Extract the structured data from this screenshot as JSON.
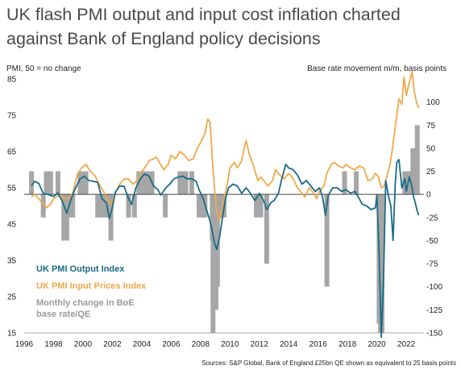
{
  "header": {
    "title_line1": "UK flash PMI output and input cost inflation charted",
    "title_line2": "against Bank of England policy decisions"
  },
  "footer": {
    "source": "Sources: S&P Global, Bank of England.£25bn QE shown as equivalent to 25 basis points"
  },
  "colors": {
    "output": "#1a6b86",
    "input": "#f0a84a",
    "bars": "#a6a6a6",
    "axis_line": "#444444",
    "title": "#4a4a4a"
  },
  "chart_data": {
    "type": "line",
    "title": "UK flash PMI output and input cost inflation charted against Bank of England policy decisions",
    "left_axis": {
      "label": "PMI, 50 = no change",
      "range": [
        15,
        85
      ],
      "ticks": [
        15,
        25,
        35,
        45,
        55,
        65,
        75,
        85
      ]
    },
    "right_axis": {
      "label": "Base rate movement m/m, basis points",
      "range": [
        -150,
        125
      ],
      "ticks": [
        -150,
        -125,
        -100,
        -75,
        -50,
        -25,
        0,
        25,
        50,
        75,
        100
      ]
    },
    "x_axis": {
      "range": [
        1996,
        2023.2
      ],
      "ticks": [
        "1996",
        "1998",
        "2000",
        "2002",
        "2004",
        "2006",
        "2008",
        "2010",
        "2012",
        "2014",
        "2016",
        "2018",
        "2020",
        "2022"
      ]
    },
    "grid": false,
    "legend_position": "bottom-left",
    "series": [
      {
        "name": "UK PMI Output Index",
        "axis": "left",
        "points": [
          [
            1996.5,
            55.6
          ],
          [
            1996.7,
            56.8
          ],
          [
            1997.0,
            56.2
          ],
          [
            1997.3,
            53.4
          ],
          [
            1997.6,
            53.2
          ],
          [
            1998.0,
            52.6
          ],
          [
            1998.3,
            53.6
          ],
          [
            1998.6,
            51.2
          ],
          [
            1998.9,
            48.0
          ],
          [
            1999.2,
            52.0
          ],
          [
            1999.5,
            55.0
          ],
          [
            1999.8,
            57.5
          ],
          [
            2000.1,
            58.2
          ],
          [
            2000.4,
            57.0
          ],
          [
            2000.7,
            56.8
          ],
          [
            2001.0,
            56.5
          ],
          [
            2001.3,
            52.0
          ],
          [
            2001.6,
            50.8
          ],
          [
            2001.8,
            46.5
          ],
          [
            2002.0,
            49.5
          ],
          [
            2002.2,
            53.8
          ],
          [
            2002.5,
            55.5
          ],
          [
            2002.8,
            55.4
          ],
          [
            2003.1,
            52.0
          ],
          [
            2003.3,
            50.4
          ],
          [
            2003.6,
            55.0
          ],
          [
            2003.9,
            57.5
          ],
          [
            2004.2,
            58.8
          ],
          [
            2004.5,
            58.2
          ],
          [
            2004.8,
            55.5
          ],
          [
            2005.1,
            54.5
          ],
          [
            2005.3,
            53.0
          ],
          [
            2005.6,
            54.8
          ],
          [
            2005.9,
            56.0
          ],
          [
            2006.2,
            57.5
          ],
          [
            2006.5,
            58.0
          ],
          [
            2006.8,
            58.2
          ],
          [
            2007.1,
            57.5
          ],
          [
            2007.4,
            57.5
          ],
          [
            2007.7,
            56.8
          ],
          [
            2007.9,
            54.5
          ],
          [
            2008.2,
            51.8
          ],
          [
            2008.4,
            49.0
          ],
          [
            2008.6,
            46.5
          ],
          [
            2008.8,
            43.0
          ],
          [
            2008.95,
            39.8
          ],
          [
            2009.1,
            38.0
          ],
          [
            2009.3,
            41.5
          ],
          [
            2009.5,
            47.0
          ],
          [
            2009.7,
            52.0
          ],
          [
            2009.9,
            55.0
          ],
          [
            2010.2,
            56.0
          ],
          [
            2010.5,
            55.5
          ],
          [
            2010.8,
            53.5
          ],
          [
            2011.1,
            55.0
          ],
          [
            2011.4,
            53.5
          ],
          [
            2011.7,
            51.5
          ],
          [
            2012.0,
            53.5
          ],
          [
            2012.3,
            51.5
          ],
          [
            2012.5,
            49.0
          ],
          [
            2012.8,
            51.0
          ],
          [
            2013.0,
            51.5
          ],
          [
            2013.3,
            53.5
          ],
          [
            2013.5,
            57.0
          ],
          [
            2013.8,
            61.5
          ],
          [
            2014.0,
            60.5
          ],
          [
            2014.3,
            60.0
          ],
          [
            2014.6,
            58.5
          ],
          [
            2014.9,
            56.0
          ],
          [
            2015.2,
            57.0
          ],
          [
            2015.5,
            55.5
          ],
          [
            2015.8,
            54.0
          ],
          [
            2016.1,
            55.0
          ],
          [
            2016.3,
            52.5
          ],
          [
            2016.5,
            47.5
          ],
          [
            2016.7,
            53.0
          ],
          [
            2017.0,
            55.0
          ],
          [
            2017.3,
            55.0
          ],
          [
            2017.6,
            54.0
          ],
          [
            2017.9,
            54.5
          ],
          [
            2018.2,
            53.5
          ],
          [
            2018.5,
            54.0
          ],
          [
            2018.8,
            52.0
          ],
          [
            2019.0,
            50.5
          ],
          [
            2019.3,
            50.0
          ],
          [
            2019.6,
            49.0
          ],
          [
            2019.9,
            49.5
          ],
          [
            2020.0,
            53.0
          ],
          [
            2020.15,
            37.0
          ],
          [
            2020.3,
            13.8
          ],
          [
            2020.45,
            30.0
          ],
          [
            2020.6,
            57.0
          ],
          [
            2020.8,
            52.5
          ],
          [
            2020.95,
            50.0
          ],
          [
            2021.1,
            40.5
          ],
          [
            2021.25,
            56.0
          ],
          [
            2021.35,
            62.0
          ],
          [
            2021.5,
            62.8
          ],
          [
            2021.7,
            55.0
          ],
          [
            2021.9,
            57.5
          ],
          [
            2022.0,
            54.0
          ],
          [
            2022.2,
            58.0
          ],
          [
            2022.35,
            56.0
          ],
          [
            2022.5,
            52.5
          ],
          [
            2022.6,
            51.0
          ],
          [
            2022.75,
            48.5
          ],
          [
            2022.85,
            47.5
          ]
        ]
      },
      {
        "name": "UK PMI Input Prices Index",
        "axis": "left",
        "points": [
          [
            1996.5,
            52.5
          ],
          [
            1996.7,
            53.2
          ],
          [
            1997.0,
            52.0
          ],
          [
            1997.3,
            50.5
          ],
          [
            1997.5,
            49.5
          ],
          [
            1997.8,
            50.5
          ],
          [
            1998.0,
            52.0
          ],
          [
            1998.4,
            53.0
          ],
          [
            1998.8,
            52.0
          ],
          [
            1999.0,
            52.0
          ],
          [
            1999.3,
            53.5
          ],
          [
            1999.6,
            58.5
          ],
          [
            1999.9,
            60.5
          ],
          [
            2000.2,
            61.5
          ],
          [
            2000.5,
            59.5
          ],
          [
            2000.8,
            58.5
          ],
          [
            2001.1,
            56.0
          ],
          [
            2001.4,
            54.0
          ],
          [
            2001.7,
            51.5
          ],
          [
            2001.9,
            50.5
          ],
          [
            2002.2,
            53.5
          ],
          [
            2002.5,
            56.0
          ],
          [
            2002.8,
            57.5
          ],
          [
            2003.1,
            57.5
          ],
          [
            2003.4,
            56.0
          ],
          [
            2003.7,
            57.0
          ],
          [
            2003.9,
            59.0
          ],
          [
            2004.2,
            60.5
          ],
          [
            2004.5,
            62.5
          ],
          [
            2004.8,
            63.0
          ],
          [
            2005.0,
            63.5
          ],
          [
            2005.2,
            62.0
          ],
          [
            2005.5,
            60.0
          ],
          [
            2005.8,
            61.5
          ],
          [
            2006.0,
            64.0
          ],
          [
            2006.3,
            63.0
          ],
          [
            2006.6,
            65.0
          ],
          [
            2006.9,
            64.0
          ],
          [
            2007.2,
            62.5
          ],
          [
            2007.5,
            63.0
          ],
          [
            2007.8,
            66.0
          ],
          [
            2008.0,
            67.5
          ],
          [
            2008.3,
            70.0
          ],
          [
            2008.5,
            74.0
          ],
          [
            2008.65,
            73.0
          ],
          [
            2008.8,
            63.0
          ],
          [
            2008.95,
            55.0
          ],
          [
            2009.1,
            48.5
          ],
          [
            2009.3,
            46.0
          ],
          [
            2009.5,
            50.5
          ],
          [
            2009.8,
            55.5
          ],
          [
            2010.0,
            60.5
          ],
          [
            2010.3,
            62.0
          ],
          [
            2010.5,
            60.5
          ],
          [
            2010.8,
            62.5
          ],
          [
            2011.0,
            66.5
          ],
          [
            2011.1,
            68.0
          ],
          [
            2011.3,
            64.5
          ],
          [
            2011.6,
            61.0
          ],
          [
            2011.9,
            57.0
          ],
          [
            2012.1,
            58.0
          ],
          [
            2012.4,
            56.5
          ],
          [
            2012.6,
            55.5
          ],
          [
            2012.9,
            57.0
          ],
          [
            2013.1,
            60.0
          ],
          [
            2013.4,
            58.5
          ],
          [
            2013.7,
            57.5
          ],
          [
            2014.0,
            59.0
          ],
          [
            2014.3,
            57.5
          ],
          [
            2014.6,
            55.0
          ],
          [
            2014.9,
            53.5
          ],
          [
            2015.1,
            52.5
          ],
          [
            2015.4,
            55.0
          ],
          [
            2015.7,
            53.5
          ],
          [
            2015.9,
            52.0
          ],
          [
            2016.1,
            54.0
          ],
          [
            2016.4,
            55.5
          ],
          [
            2016.6,
            59.0
          ],
          [
            2016.9,
            61.5
          ],
          [
            2017.1,
            62.0
          ],
          [
            2017.4,
            61.0
          ],
          [
            2017.7,
            60.5
          ],
          [
            2017.9,
            61.5
          ],
          [
            2018.2,
            60.5
          ],
          [
            2018.5,
            60.0
          ],
          [
            2018.8,
            61.0
          ],
          [
            2019.1,
            60.5
          ],
          [
            2019.4,
            57.0
          ],
          [
            2019.7,
            57.5
          ],
          [
            2019.9,
            59.0
          ],
          [
            2020.1,
            58.0
          ],
          [
            2020.3,
            55.0
          ],
          [
            2020.5,
            55.5
          ],
          [
            2020.7,
            58.5
          ],
          [
            2020.9,
            61.5
          ],
          [
            2021.1,
            67.0
          ],
          [
            2021.3,
            73.5
          ],
          [
            2021.5,
            79.5
          ],
          [
            2021.7,
            78.0
          ],
          [
            2021.85,
            85.5
          ],
          [
            2022.0,
            80.5
          ],
          [
            2022.2,
            84.0
          ],
          [
            2022.4,
            87.0
          ],
          [
            2022.55,
            81.5
          ],
          [
            2022.7,
            78.5
          ],
          [
            2022.85,
            77.0
          ]
        ]
      },
      {
        "name": "Monthly change in BoE base rate/QE",
        "axis": "right",
        "type": "bar",
        "points": [
          [
            1996.5,
            25
          ],
          [
            1997.3,
            -25
          ],
          [
            1997.5,
            25
          ],
          [
            1997.8,
            25
          ],
          [
            1998.3,
            25
          ],
          [
            1998.7,
            -50
          ],
          [
            1998.9,
            -50
          ],
          [
            1999.0,
            -25
          ],
          [
            1999.3,
            -25
          ],
          [
            1999.8,
            25
          ],
          [
            2000.0,
            25
          ],
          [
            2000.2,
            25
          ],
          [
            2001.0,
            -25
          ],
          [
            2001.2,
            -25
          ],
          [
            2001.4,
            -25
          ],
          [
            2001.7,
            -25
          ],
          [
            2001.8,
            -25
          ],
          [
            2001.9,
            -50
          ],
          [
            2003.1,
            -25
          ],
          [
            2003.5,
            -25
          ],
          [
            2003.8,
            25
          ],
          [
            2004.0,
            25
          ],
          [
            2004.3,
            25
          ],
          [
            2004.5,
            25
          ],
          [
            2004.7,
            25
          ],
          [
            2005.6,
            -25
          ],
          [
            2006.6,
            25
          ],
          [
            2006.9,
            25
          ],
          [
            2007.0,
            25
          ],
          [
            2007.4,
            25
          ],
          [
            2007.9,
            -25
          ],
          [
            2008.1,
            -25
          ],
          [
            2008.3,
            -25
          ],
          [
            2008.8,
            -50
          ],
          [
            2008.85,
            -150
          ],
          [
            2008.95,
            -100
          ],
          [
            2009.05,
            -125
          ],
          [
            2009.15,
            -100
          ],
          [
            2009.45,
            -25
          ],
          [
            2009.6,
            -25
          ],
          [
            2011.8,
            -25
          ],
          [
            2012.1,
            -25
          ],
          [
            2012.5,
            -75
          ],
          [
            2016.6,
            -100
          ],
          [
            2017.8,
            25
          ],
          [
            2018.6,
            25
          ],
          [
            2020.15,
            -140
          ],
          [
            2020.25,
            -150
          ],
          [
            2020.35,
            -150
          ],
          [
            2021.9,
            25
          ],
          [
            2022.1,
            25
          ],
          [
            2022.2,
            25
          ],
          [
            2022.4,
            25
          ],
          [
            2022.45,
            50
          ],
          [
            2022.6,
            50
          ],
          [
            2022.75,
            75
          ]
        ]
      }
    ],
    "tick_labels_left": [
      "85",
      "75",
      "65",
      "55",
      "45",
      "35",
      "25",
      "15"
    ],
    "tick_labels_right": [
      "100",
      "75",
      "50",
      "25",
      "0",
      "-25",
      "-50",
      "-75",
      "-100",
      "-125",
      "-150"
    ]
  },
  "legend": {
    "output": "UK PMI Output Index",
    "input": "UK PMI Input Prices Index",
    "bars_line1": "Monthly change in BoE",
    "bars_line2": "base rate/QE"
  },
  "axis_labels": {
    "left": "PMI, 50 = no change",
    "right": "Base rate movement m/m, basis points"
  }
}
